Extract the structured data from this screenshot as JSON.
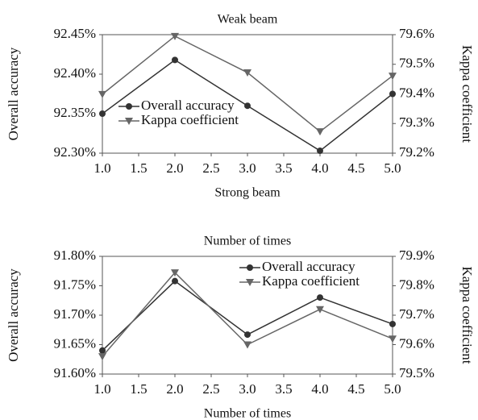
{
  "chart_data": [
    {
      "type": "line",
      "title": "Weak beam",
      "x_label": "Strong beam",
      "y_label": "Overall accuracy",
      "y2_label": "Kappa coefficient",
      "x": [
        1,
        2,
        3,
        4,
        5
      ],
      "xlim": [
        1,
        5
      ],
      "xticks": [
        {
          "value": 1,
          "label": "1.0"
        },
        {
          "value": 1.5,
          "label": "1.5"
        },
        {
          "value": 2,
          "label": "2.0"
        },
        {
          "value": 2.5,
          "label": "2.5"
        },
        {
          "value": 3,
          "label": "3.0"
        },
        {
          "value": 3.5,
          "label": "3.5"
        },
        {
          "value": 4,
          "label": "4.0"
        },
        {
          "value": 4.5,
          "label": "4.5"
        },
        {
          "value": 5,
          "label": "5.0"
        }
      ],
      "ylim": [
        92.3,
        92.45
      ],
      "yticks": [
        {
          "value": 92.3,
          "label": "92.30%"
        },
        {
          "value": 92.35,
          "label": "92.35%"
        },
        {
          "value": 92.4,
          "label": "92.40%"
        },
        {
          "value": 92.45,
          "label": "92.45%"
        }
      ],
      "y2lim": [
        79.2,
        79.6
      ],
      "y2ticks": [
        {
          "value": 79.2,
          "label": "79.2%"
        },
        {
          "value": 79.3,
          "label": "79.3%"
        },
        {
          "value": 79.4,
          "label": "79.4%"
        },
        {
          "value": 79.5,
          "label": "79.5%"
        },
        {
          "value": 79.6,
          "label": "79.6%"
        }
      ],
      "legend": "lower left",
      "series": [
        {
          "name": "Overall accuracy",
          "color": "#333333",
          "marker": "circle",
          "values": [
            92.35,
            92.418,
            92.36,
            92.303,
            92.375
          ]
        },
        {
          "name": "Kappa coefficient",
          "color": "#666666",
          "marker": "triangle-down",
          "axis": "y2",
          "values": [
            79.399,
            79.595,
            79.472,
            79.273,
            79.461
          ]
        }
      ]
    },
    {
      "type": "line",
      "title": "Number of times",
      "x_label": "Number of times",
      "y_label": "Overall accuracy",
      "y2_label": "Kappa coefficient",
      "x": [
        1,
        2,
        3,
        4,
        5
      ],
      "xlim": [
        1,
        5
      ],
      "xticks": [
        {
          "value": 1,
          "label": "1.0"
        },
        {
          "value": 1.5,
          "label": "1.5"
        },
        {
          "value": 2,
          "label": "2.0"
        },
        {
          "value": 2.5,
          "label": "2.5"
        },
        {
          "value": 3,
          "label": "3.0"
        },
        {
          "value": 3.5,
          "label": "3.5"
        },
        {
          "value": 4,
          "label": "4.0"
        },
        {
          "value": 4.5,
          "label": "4.5"
        },
        {
          "value": 5,
          "label": "5.0"
        }
      ],
      "ylim": [
        91.6,
        91.8
      ],
      "yticks": [
        {
          "value": 91.6,
          "label": "91.60%"
        },
        {
          "value": 91.65,
          "label": "91.65%"
        },
        {
          "value": 91.7,
          "label": "91.70%"
        },
        {
          "value": 91.75,
          "label": "91.75%"
        },
        {
          "value": 91.8,
          "label": "91.80%"
        }
      ],
      "y2lim": [
        79.5,
        79.9
      ],
      "y2ticks": [
        {
          "value": 79.5,
          "label": "79.5%"
        },
        {
          "value": 79.6,
          "label": "79.6%"
        },
        {
          "value": 79.7,
          "label": "79.7%"
        },
        {
          "value": 79.8,
          "label": "79.8%"
        },
        {
          "value": 79.9,
          "label": "79.9%"
        }
      ],
      "legend": "upper right",
      "series": [
        {
          "name": "Overall accuracy",
          "color": "#333333",
          "marker": "circle",
          "values": [
            91.64,
            91.758,
            91.667,
            91.73,
            91.685
          ]
        },
        {
          "name": "Kappa coefficient",
          "color": "#666666",
          "marker": "triangle-down",
          "axis": "y2",
          "values": [
            79.56,
            79.845,
            79.6,
            79.72,
            79.62
          ]
        }
      ]
    }
  ]
}
